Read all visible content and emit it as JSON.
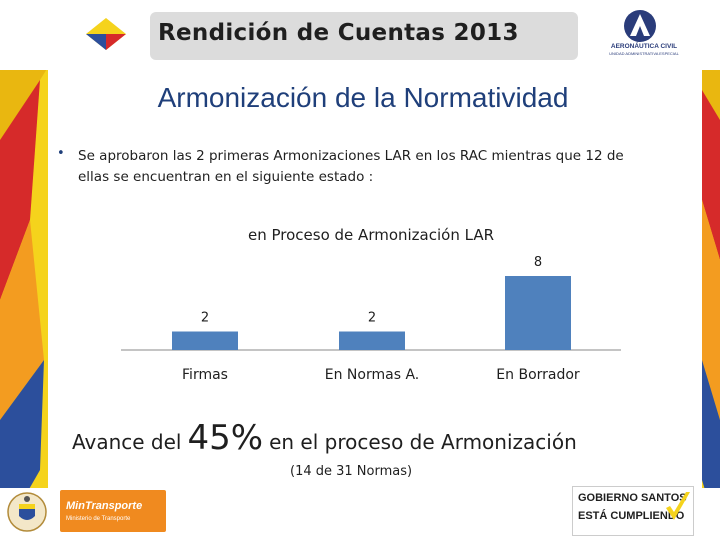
{
  "header": {
    "title": "Rendición de Cuentas 2013",
    "aero_logo_name": "AERONÁUTICA CIVIL",
    "aero_logo_sub": "UNIDAD ADMINISTRATIVA ESPECIAL"
  },
  "slide": {
    "title": "Armonización de la Normatividad",
    "bullet": "Se aprobaron las 2 primeras Armonizaciones LAR en los RAC mientras que 12 de ellas se encuentran en el siguiente estado :"
  },
  "chart_data": {
    "type": "bar",
    "title": "en Proceso de Armonización LAR",
    "categories": [
      "Firmas",
      "En Normas A.",
      "En Borrador"
    ],
    "values": [
      2,
      2,
      8
    ],
    "data_labels": [
      "2",
      "2",
      "8"
    ],
    "xlabel": "",
    "ylabel": "",
    "ylim": [
      0,
      8
    ],
    "grid": false,
    "legend": "none",
    "bar_color": "#4f81bd"
  },
  "avance": {
    "prefix": "Avance del",
    "percent": "45%",
    "suffix": "en el proceso de Armonización",
    "count": "(14 de 31 Normas)"
  },
  "footer": {
    "mintransporte_name": "MinTransporte",
    "mintransporte_sub": "Ministerio de Transporte",
    "gobierno_line1": "GOBIERNO SANTOS",
    "gobierno_line2": "ESTÁ CUMPLIENDO"
  },
  "colors": {
    "title_blue": "#1f3f7a",
    "bar": "#4f81bd",
    "frame_yellow": "#f5d31c",
    "frame_red": "#d62a2a",
    "frame_blue": "#2c4f9c",
    "accent_orange": "#f08a1f"
  },
  "icons": [
    "colombia-flag-diamond-icon",
    "aeronautica-civil-logo-icon",
    "coat-of-arms-icon",
    "checkmark-icon"
  ]
}
